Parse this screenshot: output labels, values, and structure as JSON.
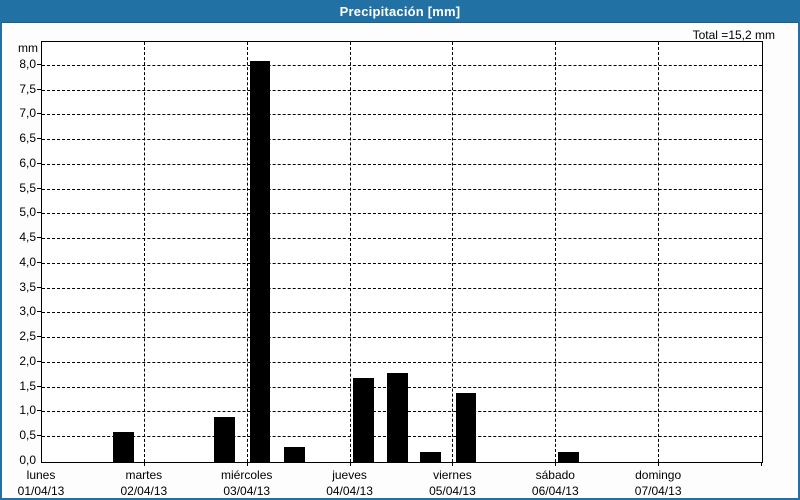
{
  "window": {
    "title": "Precipitación [mm]"
  },
  "header": {
    "total_label": "Total =15,2 mm"
  },
  "colors": {
    "titlebar_bg": "#2171a5",
    "titlebar_text": "#ffffff",
    "window_border": "#2171a5",
    "plot_background": "#ffffff",
    "plot_border": "#000000",
    "grid_color": "#000000",
    "bar_fill": "#000000",
    "text_color": "#000000"
  },
  "chart_data": {
    "type": "bar",
    "title": "Precipitación [mm]",
    "unit": "mm",
    "total_text": "Total =15,2 mm",
    "total_value_mm": 15.2,
    "ylabel": "mm",
    "xlabel": "",
    "ylim": [
      0,
      8.48
    ],
    "ytick_step": 0.5,
    "ytick_labels": [
      "0,0",
      "0,5",
      "1,0",
      "1,5",
      "2,0",
      "2,5",
      "3,0",
      "3,5",
      "4,0",
      "4,5",
      "5,0",
      "5,5",
      "6,0",
      "6,5",
      "7,0",
      "7,5",
      "8,0"
    ],
    "grid": "dashed horizontal lines every 0.5 mm; dashed vertical lines at day boundaries",
    "legend": "none",
    "days": [
      {
        "name": "lunes",
        "date": "01/04/13"
      },
      {
        "name": "martes",
        "date": "02/04/13"
      },
      {
        "name": "miércoles",
        "date": "03/04/13"
      },
      {
        "name": "jueves",
        "date": "04/04/13"
      },
      {
        "name": "viernes",
        "date": "05/04/13"
      },
      {
        "name": "sábado",
        "date": "06/04/13"
      },
      {
        "name": "domingo",
        "date": "07/04/13"
      }
    ],
    "bars": [
      {
        "day": "lunes",
        "x_frac": 0.1128,
        "value": 0.6
      },
      {
        "day": "martes",
        "x_frac": 0.2532,
        "value": 0.9
      },
      {
        "day": "miércoles",
        "x_frac": 0.3028,
        "value": 8.1
      },
      {
        "day": "miércoles",
        "x_frac": 0.3507,
        "value": 0.3
      },
      {
        "day": "jueves",
        "x_frac": 0.4461,
        "value": 1.7
      },
      {
        "day": "jueves",
        "x_frac": 0.494,
        "value": 1.8
      },
      {
        "day": "jueves",
        "x_frac": 0.5399,
        "value": 0.2
      },
      {
        "day": "viernes",
        "x_frac": 0.5889,
        "value": 1.4
      },
      {
        "day": "sábado",
        "x_frac": 0.7313,
        "value": 0.2
      }
    ],
    "bar_width_frac": 0.029
  }
}
